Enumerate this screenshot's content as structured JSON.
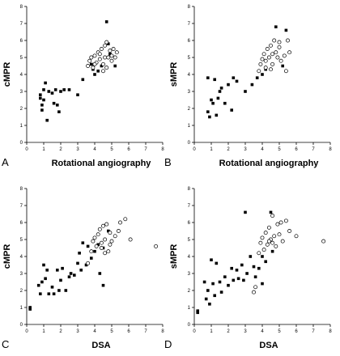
{
  "chart_data": [
    {
      "type": "scatter",
      "panel_label": "A",
      "xlabel": "Rotational angiography",
      "ylabel": "cMPR",
      "xlim": [
        0,
        8
      ],
      "ylim": [
        0,
        8
      ],
      "xticks": [
        "0",
        "1",
        "2",
        "3",
        "4",
        "5",
        "6",
        "7",
        "8"
      ],
      "yticks": [
        "0",
        "1",
        "2",
        "3",
        "4",
        "5",
        "6",
        "7",
        "8"
      ],
      "series": [
        {
          "marker": "filled-square",
          "points": [
            [
              0.8,
              2.8
            ],
            [
              0.8,
              2.6
            ],
            [
              0.9,
              2.2
            ],
            [
              0.9,
              1.9
            ],
            [
              1.0,
              3.1
            ],
            [
              1.0,
              2.5
            ],
            [
              1.1,
              3.5
            ],
            [
              1.2,
              1.3
            ],
            [
              1.3,
              3.0
            ],
            [
              1.5,
              2.9
            ],
            [
              1.6,
              2.3
            ],
            [
              1.7,
              3.1
            ],
            [
              1.8,
              2.2
            ],
            [
              1.9,
              1.8
            ],
            [
              2.0,
              3.0
            ],
            [
              2.2,
              3.1
            ],
            [
              2.5,
              3.1
            ],
            [
              3.0,
              2.8
            ],
            [
              3.3,
              3.7
            ],
            [
              3.8,
              4.6
            ],
            [
              3.9,
              4.3
            ],
            [
              4.0,
              4.0
            ],
            [
              4.2,
              4.2
            ],
            [
              4.4,
              4.5
            ],
            [
              4.7,
              7.1
            ],
            [
              4.9,
              5.2
            ],
            [
              5.2,
              4.5
            ],
            [
              4.8,
              5.8
            ]
          ]
        },
        {
          "marker": "open-circle",
          "points": [
            [
              3.6,
              4.5
            ],
            [
              3.7,
              4.8
            ],
            [
              3.8,
              5.0
            ],
            [
              3.9,
              4.4
            ],
            [
              4.0,
              5.1
            ],
            [
              4.1,
              4.7
            ],
            [
              4.2,
              5.3
            ],
            [
              4.3,
              4.9
            ],
            [
              4.4,
              5.5
            ],
            [
              4.5,
              4.6
            ],
            [
              4.6,
              5.7
            ],
            [
              4.7,
              5.9
            ],
            [
              4.8,
              5.0
            ],
            [
              4.9,
              5.4
            ],
            [
              5.0,
              5.1
            ],
            [
              5.1,
              5.5
            ],
            [
              5.2,
              5.0
            ],
            [
              5.3,
              5.3
            ],
            [
              4.5,
              4.2
            ],
            [
              4.7,
              4.4
            ],
            [
              4.0,
              4.6
            ],
            [
              4.3,
              5.2
            ],
            [
              4.6,
              5.0
            ],
            [
              5.0,
              4.8
            ]
          ]
        }
      ]
    },
    {
      "type": "scatter",
      "panel_label": "B",
      "xlabel": "Rotational angiography",
      "ylabel": "sMPR",
      "xlim": [
        0,
        8
      ],
      "ylim": [
        0,
        8
      ],
      "xticks": [
        "0",
        "1",
        "2",
        "3",
        "4",
        "5",
        "6",
        "7",
        "8"
      ],
      "yticks": [
        "0",
        "1",
        "2",
        "3",
        "4",
        "5",
        "6",
        "7",
        "8"
      ],
      "series": [
        {
          "marker": "filled-square",
          "points": [
            [
              0.8,
              3.8
            ],
            [
              0.8,
              1.8
            ],
            [
              0.9,
              1.5
            ],
            [
              1.0,
              2.5
            ],
            [
              1.1,
              2.3
            ],
            [
              1.2,
              3.7
            ],
            [
              1.3,
              1.6
            ],
            [
              1.4,
              2.6
            ],
            [
              1.5,
              3.0
            ],
            [
              1.6,
              3.2
            ],
            [
              1.8,
              2.3
            ],
            [
              2.0,
              3.4
            ],
            [
              2.2,
              1.9
            ],
            [
              2.3,
              3.8
            ],
            [
              2.5,
              3.6
            ],
            [
              3.0,
              3.0
            ],
            [
              3.4,
              3.4
            ],
            [
              3.7,
              3.8
            ],
            [
              4.0,
              4.0
            ],
            [
              4.2,
              4.3
            ],
            [
              4.8,
              6.8
            ],
            [
              5.4,
              6.6
            ],
            [
              5.2,
              4.5
            ]
          ]
        },
        {
          "marker": "open-circle",
          "points": [
            [
              3.8,
              4.2
            ],
            [
              3.9,
              4.6
            ],
            [
              4.0,
              4.9
            ],
            [
              4.1,
              5.2
            ],
            [
              4.2,
              4.8
            ],
            [
              4.3,
              5.5
            ],
            [
              4.4,
              5.0
            ],
            [
              4.5,
              5.7
            ],
            [
              4.6,
              4.6
            ],
            [
              4.7,
              6.0
            ],
            [
              4.8,
              5.3
            ],
            [
              4.9,
              5.0
            ],
            [
              5.0,
              5.6
            ],
            [
              5.1,
              4.8
            ],
            [
              5.3,
              5.1
            ],
            [
              5.4,
              4.2
            ],
            [
              5.5,
              6.0
            ],
            [
              5.6,
              5.3
            ],
            [
              4.5,
              4.3
            ],
            [
              4.2,
              4.4
            ],
            [
              4.6,
              5.2
            ],
            [
              5.0,
              5.9
            ]
          ]
        }
      ]
    },
    {
      "type": "scatter",
      "panel_label": "C",
      "xlabel": "DSA",
      "ylabel": "cMPR",
      "xlim": [
        0,
        8
      ],
      "ylim": [
        0,
        8
      ],
      "xticks": [
        "0",
        "1",
        "2",
        "3",
        "4",
        "5",
        "6",
        "7",
        "8"
      ],
      "yticks": [
        "0",
        "1",
        "2",
        "3",
        "4",
        "5",
        "6",
        "7",
        "8"
      ],
      "series": [
        {
          "marker": "filled-square",
          "points": [
            [
              0.2,
              1.0
            ],
            [
              0.2,
              0.9
            ],
            [
              0.7,
              2.3
            ],
            [
              0.8,
              1.8
            ],
            [
              0.9,
              2.5
            ],
            [
              1.0,
              3.5
            ],
            [
              1.1,
              2.7
            ],
            [
              1.2,
              3.2
            ],
            [
              1.3,
              1.8
            ],
            [
              1.5,
              2.2
            ],
            [
              1.6,
              1.8
            ],
            [
              1.8,
              3.2
            ],
            [
              1.9,
              2.0
            ],
            [
              2.0,
              2.6
            ],
            [
              2.1,
              3.3
            ],
            [
              2.3,
              2.0
            ],
            [
              2.5,
              2.8
            ],
            [
              2.6,
              3.0
            ],
            [
              2.8,
              2.9
            ],
            [
              3.0,
              3.6
            ],
            [
              3.1,
              4.2
            ],
            [
              3.2,
              3.2
            ],
            [
              3.3,
              4.8
            ],
            [
              3.5,
              3.5
            ],
            [
              3.6,
              4.6
            ],
            [
              3.8,
              3.9
            ],
            [
              4.0,
              4.3
            ],
            [
              4.2,
              4.7
            ],
            [
              4.5,
              4.5
            ],
            [
              4.5,
              2.3
            ],
            [
              4.3,
              3.0
            ],
            [
              4.8,
              5.5
            ]
          ]
        },
        {
          "marker": "open-circle",
          "points": [
            [
              3.6,
              3.6
            ],
            [
              3.8,
              4.3
            ],
            [
              3.9,
              4.9
            ],
            [
              4.0,
              5.1
            ],
            [
              4.1,
              4.6
            ],
            [
              4.2,
              5.3
            ],
            [
              4.3,
              5.6
            ],
            [
              4.4,
              4.8
            ],
            [
              4.5,
              5.8
            ],
            [
              4.6,
              5.0
            ],
            [
              4.7,
              5.9
            ],
            [
              4.8,
              4.3
            ],
            [
              4.9,
              5.4
            ],
            [
              5.0,
              4.9
            ],
            [
              5.2,
              5.2
            ],
            [
              5.4,
              5.5
            ],
            [
              5.5,
              6.0
            ],
            [
              5.8,
              6.2
            ],
            [
              6.1,
              5.0
            ],
            [
              7.6,
              4.6
            ],
            [
              4.4,
              4.5
            ],
            [
              4.6,
              4.2
            ],
            [
              4.9,
              4.7
            ]
          ]
        }
      ]
    },
    {
      "type": "scatter",
      "panel_label": "D",
      "xlabel": "DSA",
      "ylabel": "sMPR",
      "xlim": [
        0,
        8
      ],
      "ylim": [
        0,
        8
      ],
      "xticks": [
        "0",
        "1",
        "2",
        "3",
        "4",
        "5",
        "6",
        "7",
        "8"
      ],
      "yticks": [
        "0",
        "1",
        "2",
        "3",
        "4",
        "5",
        "6",
        "7",
        "8"
      ],
      "series": [
        {
          "marker": "filled-square",
          "points": [
            [
              0.2,
              0.8
            ],
            [
              0.2,
              0.7
            ],
            [
              0.6,
              2.5
            ],
            [
              0.7,
              1.5
            ],
            [
              0.8,
              2.0
            ],
            [
              0.9,
              1.2
            ],
            [
              1.0,
              3.8
            ],
            [
              1.1,
              2.4
            ],
            [
              1.2,
              1.7
            ],
            [
              1.3,
              3.6
            ],
            [
              1.5,
              2.5
            ],
            [
              1.6,
              1.9
            ],
            [
              1.8,
              2.8
            ],
            [
              2.0,
              2.3
            ],
            [
              2.2,
              3.3
            ],
            [
              2.3,
              2.6
            ],
            [
              2.5,
              3.2
            ],
            [
              2.6,
              2.7
            ],
            [
              2.8,
              3.5
            ],
            [
              2.9,
              2.6
            ],
            [
              3.0,
              6.6
            ],
            [
              3.1,
              3.0
            ],
            [
              3.3,
              4.0
            ],
            [
              3.5,
              3.4
            ],
            [
              3.6,
              2.8
            ],
            [
              3.8,
              3.3
            ],
            [
              4.0,
              4.0
            ],
            [
              4.2,
              3.7
            ],
            [
              4.5,
              6.6
            ],
            [
              4.6,
              4.3
            ],
            [
              4.0,
              2.4
            ]
          ]
        },
        {
          "marker": "open-circle",
          "points": [
            [
              3.6,
              2.2
            ],
            [
              3.8,
              4.2
            ],
            [
              3.9,
              4.8
            ],
            [
              4.0,
              5.1
            ],
            [
              4.1,
              4.4
            ],
            [
              4.2,
              5.4
            ],
            [
              4.3,
              4.7
            ],
            [
              4.4,
              5.7
            ],
            [
              4.5,
              5.0
            ],
            [
              4.6,
              6.4
            ],
            [
              4.7,
              5.2
            ],
            [
              4.8,
              4.6
            ],
            [
              4.9,
              5.9
            ],
            [
              5.0,
              5.3
            ],
            [
              5.1,
              6.0
            ],
            [
              5.2,
              4.9
            ],
            [
              5.4,
              6.1
            ],
            [
              5.6,
              5.5
            ],
            [
              6.0,
              5.2
            ],
            [
              7.6,
              4.9
            ],
            [
              3.5,
              1.9
            ],
            [
              4.4,
              4.9
            ],
            [
              4.6,
              4.8
            ]
          ]
        }
      ]
    }
  ]
}
